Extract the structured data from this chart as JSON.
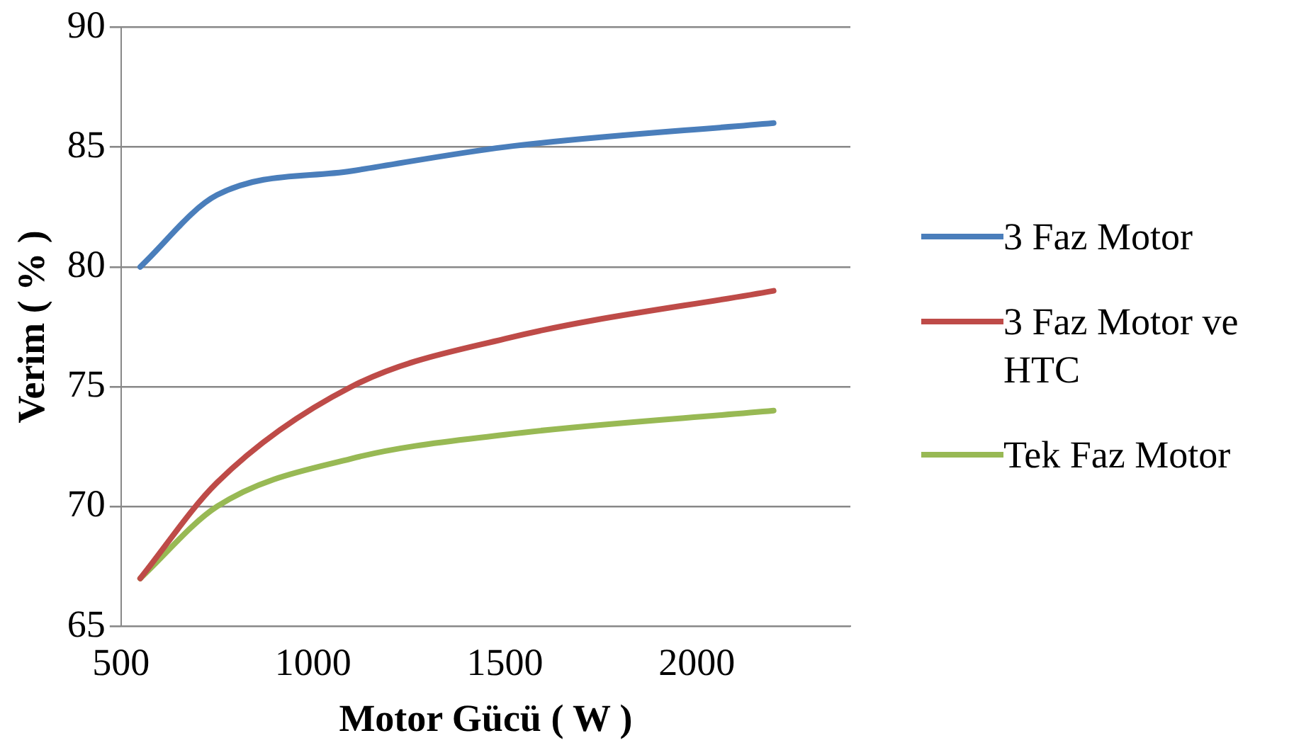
{
  "chart_data": {
    "type": "line",
    "xlabel": "Motor Gücü ( W )",
    "ylabel": "Verim ( % )",
    "x": [
      550,
      750,
      1100,
      1500,
      2200
    ],
    "series": [
      {
        "name": "3 Faz Motor",
        "color": "#4a7ebb",
        "values": [
          80,
          83,
          84,
          85,
          86
        ]
      },
      {
        "name": "3 Faz Motor ve HTC",
        "color": "#be4b48",
        "values": [
          67,
          71,
          75,
          77,
          79
        ]
      },
      {
        "name": "Tek Faz Motor",
        "color": "#98b954",
        "values": [
          67,
          70,
          72,
          73,
          74
        ]
      }
    ],
    "xlim": [
      500,
      2400
    ],
    "xticks": [
      500,
      1000,
      1500,
      2000
    ],
    "ylim": [
      65,
      90
    ],
    "yticks": [
      65,
      70,
      75,
      80,
      85,
      90
    ],
    "grid": "y",
    "legend": "right",
    "marker": "none",
    "line_style": "solid"
  }
}
